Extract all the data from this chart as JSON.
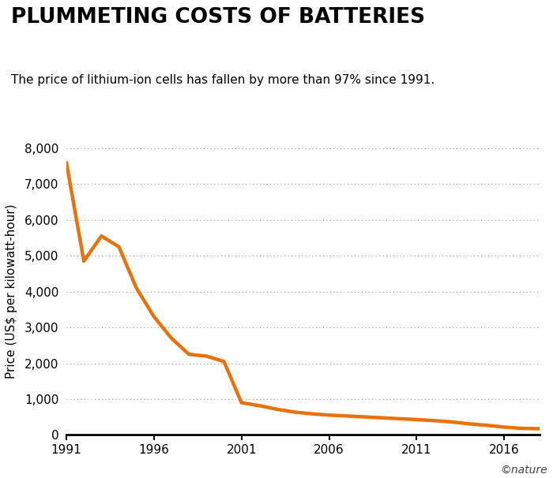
{
  "title": "PLUMMETING COSTS OF BATTERIES",
  "subtitle": "The price of lithium-ion cells has fallen by more than 97% since 1991.",
  "ylabel": "Price (US$ per kilowatt-hour)",
  "line_color": "#E8720C",
  "line_width": 3.2,
  "background_color": "#ffffff",
  "years": [
    1991,
    1992,
    1993,
    1994,
    1995,
    1996,
    1997,
    1998,
    1999,
    2000,
    2001,
    2002,
    2003,
    2004,
    2005,
    2006,
    2007,
    2008,
    2009,
    2010,
    2011,
    2012,
    2013,
    2014,
    2015,
    2016,
    2017,
    2018
  ],
  "values": [
    7600,
    4850,
    5550,
    5250,
    4100,
    3300,
    2700,
    2250,
    2200,
    2050,
    900,
    820,
    720,
    640,
    590,
    555,
    530,
    505,
    480,
    455,
    430,
    400,
    365,
    310,
    270,
    220,
    185,
    175
  ],
  "xlim": [
    1991,
    2018
  ],
  "ylim": [
    0,
    8000
  ],
  "yticks": [
    0,
    1000,
    2000,
    3000,
    4000,
    5000,
    6000,
    7000,
    8000
  ],
  "xticks": [
    1991,
    1996,
    2001,
    2006,
    2011,
    2016
  ],
  "grid_color": "#999999",
  "nature_credit": "©nature",
  "title_fontsize": 19,
  "subtitle_fontsize": 11,
  "tick_fontsize": 11,
  "ylabel_fontsize": 11
}
